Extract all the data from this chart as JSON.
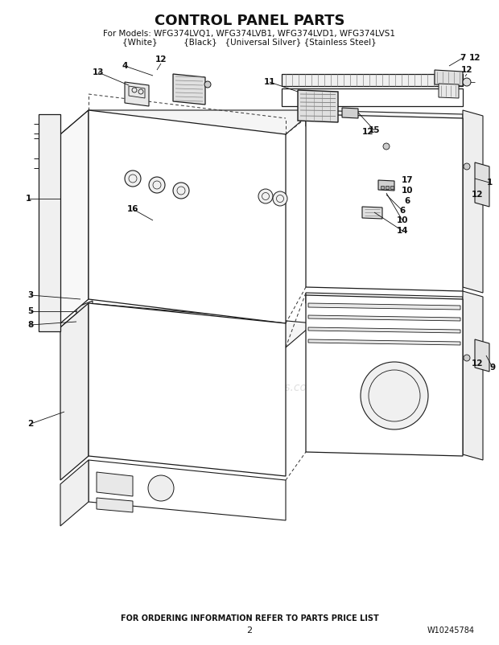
{
  "title": "CONTROL PANEL PARTS",
  "subtitle_line1": "For Models: WFG374LVQ1, WFG374LVB1, WFG374LVD1, WFG374LVS1",
  "subtitle_line2": "{White}          {Black}   {Universal Silver} {Stainless Steel}",
  "footer_text": "FOR ORDERING INFORMATION REFER TO PARTS PRICE LIST",
  "page_number": "2",
  "part_number": "W10245784",
  "watermark": "eReplacementParts.com",
  "bg_color": "#ffffff",
  "line_color": "#1a1a1a",
  "text_color": "#111111",
  "title_fontsize": 13,
  "subtitle_fontsize": 7.5,
  "footer_fontsize": 7
}
